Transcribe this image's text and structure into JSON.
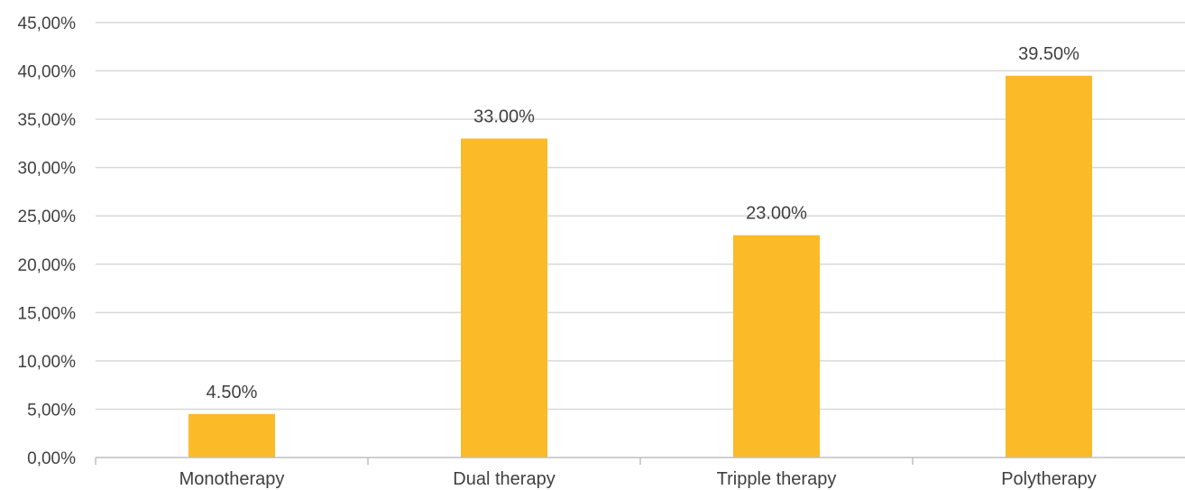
{
  "chart_data": {
    "type": "bar",
    "categories": [
      "Monotherapy",
      "Dual therapy",
      "Tripple therapy",
      "Polytherapy"
    ],
    "values": [
      4.5,
      33.0,
      23.0,
      39.5
    ],
    "data_labels": [
      "4.50%",
      "33.00%",
      "23.00%",
      "39.50%"
    ],
    "y_tick_labels": [
      "0,00%",
      "5,00%",
      "10,00%",
      "15,00%",
      "20,00%",
      "25,00%",
      "30,00%",
      "35,00%",
      "40,00%",
      "45,00%"
    ],
    "ylim": [
      0,
      45
    ],
    "grid": true,
    "legend": "none",
    "bar_color": "#FBBA27"
  }
}
